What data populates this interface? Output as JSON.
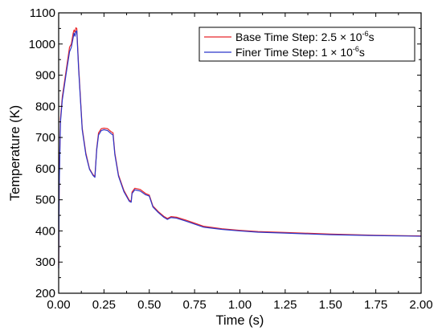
{
  "chart_data": {
    "type": "line",
    "xlabel": "Time (s)",
    "ylabel": "Temperature (K)",
    "xlim": [
      0,
      2
    ],
    "ylim": [
      200,
      1100
    ],
    "xticks": [
      "0.00",
      "0.25",
      "0.50",
      "0.75",
      "1.00",
      "1.25",
      "1.50",
      "1.75",
      "2.00"
    ],
    "yticks": [
      "200",
      "300",
      "400",
      "500",
      "600",
      "700",
      "800",
      "900",
      "1000",
      "1100"
    ],
    "grid": false,
    "legend_position": "top-right",
    "series": [
      {
        "name": "Base Time Step: 2.5 × 10",
        "name_exponent": "-6",
        "name_suffix": "s",
        "color": "#e8262b",
        "x": [
          0,
          0.003,
          0.01,
          0.02,
          0.04,
          0.06,
          0.07,
          0.08,
          0.085,
          0.09,
          0.095,
          0.1,
          0.11,
          0.13,
          0.15,
          0.17,
          0.19,
          0.2,
          0.21,
          0.22,
          0.235,
          0.25,
          0.27,
          0.29,
          0.3,
          0.31,
          0.33,
          0.36,
          0.39,
          0.4,
          0.405,
          0.42,
          0.45,
          0.48,
          0.5,
          0.52,
          0.55,
          0.58,
          0.6,
          0.62,
          0.65,
          0.7,
          0.75,
          0.8,
          0.9,
          1.0,
          1.1,
          1.25,
          1.5,
          1.75,
          2.0
        ],
        "y": [
          290,
          560,
          760,
          830,
          910,
          990,
          1000,
          1035,
          1045,
          1038,
          1052,
          1050,
          930,
          730,
          650,
          600,
          580,
          575,
          665,
          715,
          728,
          730,
          728,
          718,
          715,
          650,
          580,
          530,
          498,
          495,
          525,
          537,
          533,
          520,
          515,
          480,
          462,
          447,
          440,
          446,
          444,
          435,
          425,
          415,
          407,
          402,
          398,
          395,
          390,
          386,
          384
        ]
      },
      {
        "name": "Finer Time Step: 1 × 10",
        "name_exponent": "-6",
        "name_suffix": "s",
        "color": "#2c36c9",
        "x": [
          0,
          0.003,
          0.01,
          0.02,
          0.04,
          0.06,
          0.07,
          0.08,
          0.085,
          0.09,
          0.095,
          0.1,
          0.11,
          0.13,
          0.15,
          0.17,
          0.19,
          0.2,
          0.21,
          0.22,
          0.235,
          0.25,
          0.27,
          0.29,
          0.3,
          0.31,
          0.33,
          0.36,
          0.39,
          0.4,
          0.405,
          0.42,
          0.45,
          0.48,
          0.5,
          0.52,
          0.55,
          0.58,
          0.6,
          0.62,
          0.65,
          0.7,
          0.75,
          0.8,
          0.9,
          1.0,
          1.1,
          1.25,
          1.5,
          1.75,
          2.0
        ],
        "y": [
          280,
          545,
          750,
          820,
          900,
          975,
          990,
          1020,
          1035,
          1025,
          1040,
          1042,
          920,
          725,
          645,
          598,
          578,
          572,
          660,
          708,
          722,
          725,
          722,
          712,
          708,
          645,
          576,
          526,
          495,
          492,
          520,
          532,
          528,
          516,
          512,
          477,
          459,
          444,
          437,
          443,
          441,
          432,
          422,
          412,
          405,
          400,
          396,
          393,
          388,
          385,
          383
        ]
      }
    ]
  }
}
